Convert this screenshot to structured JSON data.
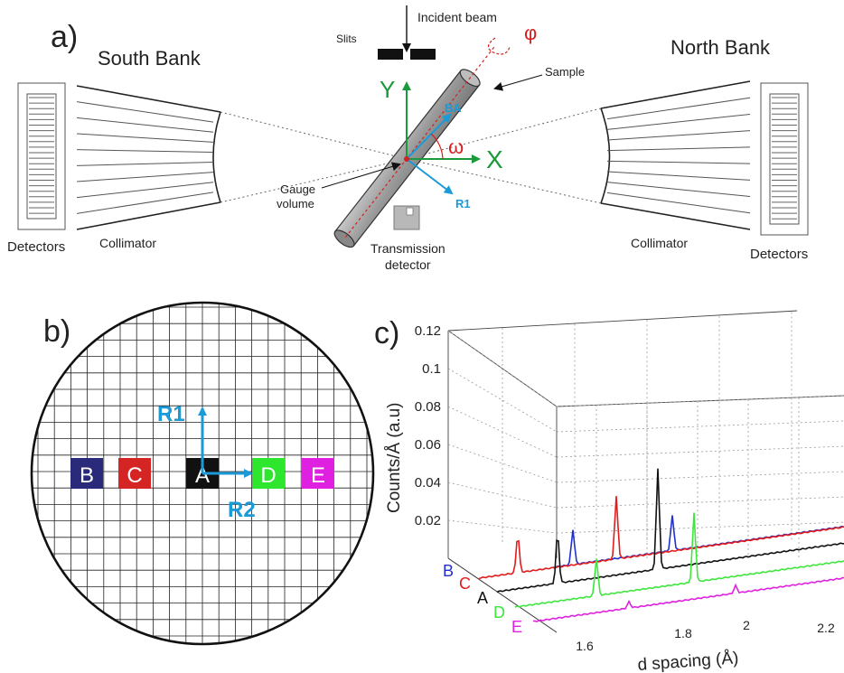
{
  "panel_a": {
    "label": "a)",
    "south_bank": "South Bank",
    "north_bank": "North Bank",
    "detectors_left": "Detectors",
    "detectors_right": "Detectors",
    "collimator_left": "Collimator",
    "collimator_right": "Collimator",
    "incident_beam": "Incident beam",
    "slits": "Slits",
    "sample": "Sample",
    "gauge_volume_line1": "Gauge",
    "gauge_volume_line2": "volume",
    "transmission_line1": "Transmission",
    "transmission_line2": "detector",
    "axis_x": "X",
    "axis_y": "Y",
    "ba": "BA",
    "r1": "R1",
    "phi": "φ",
    "omega": "ω",
    "colors": {
      "axis": "#1a9a3a",
      "sample_axes": "#1a9ad6",
      "angle": "#d42020"
    }
  },
  "panel_b": {
    "label": "b)",
    "r1": "R1",
    "r2": "R2",
    "points": [
      {
        "label": "B",
        "color": "#2a2a7a"
      },
      {
        "label": "C",
        "color": "#d42424"
      },
      {
        "label": "A",
        "color": "#111111"
      },
      {
        "label": "D",
        "color": "#2ee62e"
      },
      {
        "label": "E",
        "color": "#e020e0"
      }
    ]
  },
  "panel_c": {
    "label": "c)",
    "chart_data": {
      "type": "line",
      "xlabel": "d spacing (Å)",
      "ylabel": "Counts/Å (a.u)",
      "x_ticks": [
        "1.6",
        "1.8",
        "2",
        "2.2"
      ],
      "y_ticks": [
        "0.02",
        "0.04",
        "0.06",
        "0.08",
        "0.1",
        "0.12"
      ],
      "ylim": [
        0,
        0.12
      ],
      "grid": true,
      "series": [
        {
          "name": "B",
          "color": "#1f2fd0",
          "peaks": [
            {
              "x": 1.6,
              "y": 0.028
            },
            {
              "x": 1.88,
              "y": 0.028
            }
          ]
        },
        {
          "name": "C",
          "color": "#e01c1c",
          "peaks": [
            {
              "x": 1.6,
              "y": 0.03
            },
            {
              "x": 1.88,
              "y": 0.05
            }
          ]
        },
        {
          "name": "A",
          "color": "#111111",
          "peaks": [
            {
              "x": 1.6,
              "y": 0.04
            },
            {
              "x": 1.88,
              "y": 0.08
            }
          ]
        },
        {
          "name": "D",
          "color": "#3ee63e",
          "peaks": [
            {
              "x": 1.6,
              "y": 0.03
            },
            {
              "x": 1.88,
              "y": 0.055
            }
          ]
        },
        {
          "name": "E",
          "color": "#e020e0",
          "peaks": [
            {
              "x": 1.6,
              "y": 0.005
            },
            {
              "x": 1.88,
              "y": 0.006
            }
          ]
        }
      ]
    }
  }
}
